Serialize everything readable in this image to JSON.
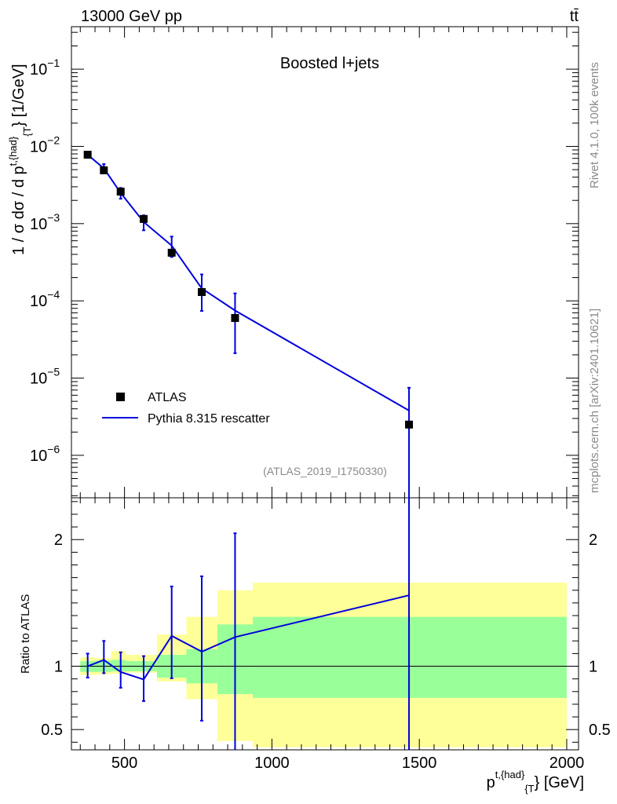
{
  "header": {
    "left": "13000 GeV pp",
    "right": "tt̄"
  },
  "side_labels": {
    "rivet": "Rivet 4.1.0,  100k events",
    "mcplots": "mcplots.cern.ch [arXiv:2401.10621]"
  },
  "chart_data": {
    "type": "scatter",
    "title": "Boosted l+jets",
    "analysis_label": "(ATLAS_2019_I1750330)",
    "xlabel": {
      "base": "p",
      "sup": "t,{had",
      "mid": "}",
      "sub": "{T",
      "tail": "} [GeV]"
    },
    "ylabel": {
      "pre": "1 / σ dσ / d p",
      "sup": "t,{had",
      "mid": "}",
      "sub": "{T",
      "tail": "} [1/GeV]"
    },
    "xlim": [
      320,
      2040
    ],
    "ylim_log10": [
      -6.55,
      -0.45
    ],
    "x_ticks": [
      500,
      1000,
      1500,
      2000
    ],
    "x_tick_labels": [
      "500",
      "1000",
      "1500",
      "2000"
    ],
    "y_tick_exponents": [
      -6,
      -5,
      -4,
      -3,
      -2,
      -1
    ],
    "y_tick_base": "10",
    "y_tick_labels": [
      "−6",
      "−5",
      "−4",
      "−3",
      "−2",
      "−1"
    ],
    "legend": [
      {
        "label": "ATLAS",
        "kind": "marker"
      },
      {
        "label": "Pythia 8.315 rescatter",
        "kind": "line"
      }
    ],
    "series": [
      {
        "name": "ATLAS",
        "x": [
          375,
          430,
          487,
          565,
          660,
          762,
          875,
          1465
        ],
        "xerr": [
          25,
          25,
          30,
          40,
          50,
          60,
          75,
          535
        ],
        "y": [
          0.0078,
          0.0049,
          0.0026,
          0.00115,
          0.00042,
          0.00013,
          6e-05,
          2.5e-06
        ]
      },
      {
        "name": "Pythia 8.315 rescatter",
        "x": [
          375,
          430,
          487,
          565,
          660,
          762,
          875,
          1465
        ],
        "y": [
          0.0078,
          0.0052,
          0.0025,
          0.00105,
          0.00052,
          0.000145,
          7.5e-05,
          3.8e-06
        ],
        "y_low": [
          0.0071,
          0.0045,
          0.0021,
          0.00082,
          0.00037,
          7.4e-05,
          2.1e-05,
          2e-07
        ],
        "y_high": [
          0.0085,
          0.0059,
          0.0029,
          0.00128,
          0.00068,
          0.00022,
          0.000125,
          7.5e-06
        ]
      }
    ],
    "ratio": {
      "ylabel": "Ratio to ATLAS",
      "ylim": [
        0.34,
        2.33
      ],
      "y_ticks": [
        0.5,
        1,
        2
      ],
      "y_tick_labels": [
        "0.5",
        "1",
        "2"
      ],
      "reference": 1.0,
      "bins": [
        {
          "x0": 350,
          "x1": 400,
          "g_lo": 0.955,
          "g_hi": 1.04,
          "y_lo": 0.93,
          "y_hi": 1.07
        },
        {
          "x0": 400,
          "x1": 455,
          "g_lo": 0.955,
          "g_hi": 1.045,
          "y_lo": 0.935,
          "y_hi": 1.065
        },
        {
          "x0": 455,
          "x1": 505,
          "g_lo": 0.96,
          "g_hi": 1.05,
          "y_lo": 0.94,
          "y_hi": 1.12
        },
        {
          "x0": 505,
          "x1": 610,
          "g_lo": 0.96,
          "g_hi": 1.04,
          "y_lo": 0.95,
          "y_hi": 1.09
        },
        {
          "x0": 610,
          "x1": 710,
          "g_lo": 0.91,
          "g_hi": 1.09,
          "y_lo": 0.88,
          "y_hi": 1.25
        },
        {
          "x0": 710,
          "x1": 815,
          "g_lo": 0.865,
          "g_hi": 1.135,
          "y_lo": 0.74,
          "y_hi": 1.39
        },
        {
          "x0": 815,
          "x1": 935,
          "g_lo": 0.78,
          "g_hi": 1.33,
          "y_lo": 0.41,
          "y_hi": 1.6
        },
        {
          "x0": 935,
          "x1": 2000,
          "g_lo": 0.75,
          "g_hi": 1.39,
          "y_lo": 0.36,
          "y_hi": 1.66
        }
      ],
      "data": [
        {
          "x": 375,
          "y": 1.0,
          "lo": 0.91,
          "hi": 1.1
        },
        {
          "x": 430,
          "y": 1.05,
          "lo": 0.945,
          "hi": 1.2
        },
        {
          "x": 487,
          "y": 0.955,
          "lo": 0.83,
          "hi": 1.11
        },
        {
          "x": 565,
          "y": 0.895,
          "lo": 0.725,
          "hi": 1.08
        },
        {
          "x": 660,
          "y": 1.24,
          "lo": 0.905,
          "hi": 1.63
        },
        {
          "x": 762,
          "y": 1.115,
          "lo": 0.57,
          "hi": 1.71
        },
        {
          "x": 875,
          "y": 1.23,
          "lo": 0.3,
          "hi": 2.05
        },
        {
          "x": 1465,
          "y": 1.56,
          "lo": 0.3,
          "hi": 2.4
        }
      ]
    },
    "colors": {
      "mc": "#0000dd",
      "data": "#000000",
      "band_inner": "#99ff99",
      "band_outer": "#ffff99",
      "watermark": "#8a8a8a"
    }
  }
}
